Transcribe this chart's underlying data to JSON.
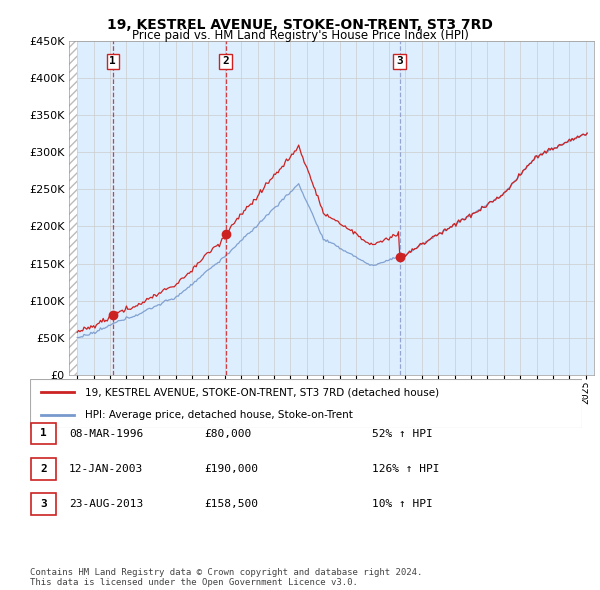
{
  "title": "19, KESTREL AVENUE, STOKE-ON-TRENT, ST3 7RD",
  "subtitle": "Price paid vs. HM Land Registry's House Price Index (HPI)",
  "legend_line1": "19, KESTREL AVENUE, STOKE-ON-TRENT, ST3 7RD (detached house)",
  "legend_line2": "HPI: Average price, detached house, Stoke-on-Trent",
  "footer": "Contains HM Land Registry data © Crown copyright and database right 2024.\nThis data is licensed under the Open Government Licence v3.0.",
  "transactions": [
    {
      "num": 1,
      "date": "08-MAR-1996",
      "price": 80000,
      "hpi_pct": "52% ↑ HPI",
      "x": 1996.17,
      "vline_style": "red_dash"
    },
    {
      "num": 2,
      "date": "12-JAN-2003",
      "price": 190000,
      "hpi_pct": "126% ↑ HPI",
      "x": 2003.04,
      "vline_style": "red_dash"
    },
    {
      "num": 3,
      "date": "23-AUG-2013",
      "price": 158500,
      "hpi_pct": "10% ↑ HPI",
      "x": 2013.65,
      "vline_style": "blue_dash"
    }
  ],
  "ylim": [
    0,
    450000
  ],
  "yticks": [
    0,
    50000,
    100000,
    150000,
    200000,
    250000,
    300000,
    350000,
    400000,
    450000
  ],
  "ytick_labels": [
    "£0",
    "£50K",
    "£100K",
    "£150K",
    "£200K",
    "£250K",
    "£300K",
    "£350K",
    "£400K",
    "£450K"
  ],
  "xlim": [
    1993.5,
    2025.5
  ],
  "hpi_color": "#7799cc",
  "price_color": "#cc2222",
  "vline_red": "#cc2222",
  "vline_blue": "#8899cc",
  "grid_color": "#cccccc",
  "plot_bg": "#ddeeff",
  "hatch_color": "#bbbbbb"
}
